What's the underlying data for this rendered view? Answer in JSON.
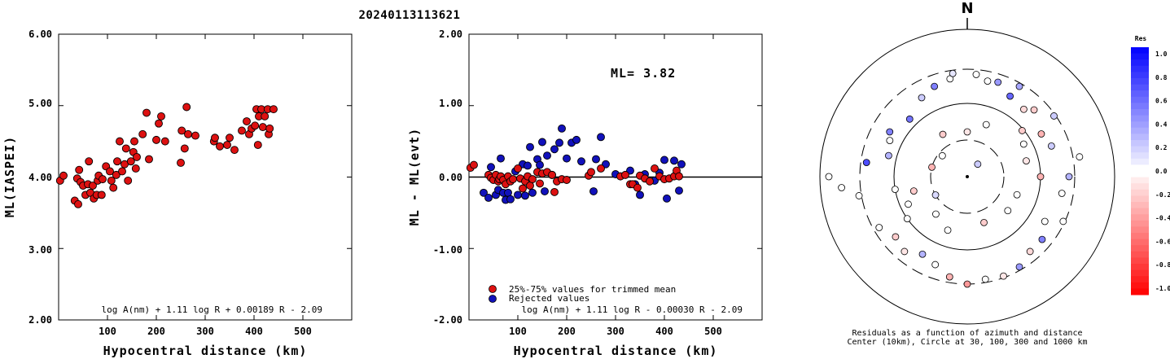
{
  "title": "20240113113621",
  "colors": {
    "red": "#dd1111",
    "blue": "#1111bb"
  },
  "chart_data": [
    {
      "type": "scatter",
      "ylabel": "ML(IASPEI)",
      "xlabel": "Hypocentral distance (km)",
      "xlim": [
        0,
        600
      ],
      "ylim": [
        2.0,
        6.0
      ],
      "xticks": [
        "100",
        "200",
        "300",
        "400",
        "500"
      ],
      "yticks": [
        "2.00",
        "3.00",
        "4.00",
        "5.00",
        "6.00"
      ],
      "formula": "log A(nm) + 1.11 log R + 0.00189 R - 2.09",
      "points": [
        [
          3,
          3.95
        ],
        [
          10,
          4.02
        ],
        [
          33,
          3.67
        ],
        [
          38,
          3.98
        ],
        [
          40,
          3.62
        ],
        [
          42,
          4.1
        ],
        [
          45,
          3.93
        ],
        [
          50,
          3.88
        ],
        [
          55,
          3.75
        ],
        [
          60,
          3.9
        ],
        [
          62,
          4.22
        ],
        [
          65,
          3.78
        ],
        [
          70,
          3.88
        ],
        [
          72,
          3.7
        ],
        [
          78,
          3.75
        ],
        [
          80,
          3.95
        ],
        [
          82,
          4.02
        ],
        [
          88,
          3.75
        ],
        [
          90,
          3.97
        ],
        [
          97,
          4.15
        ],
        [
          105,
          4.08
        ],
        [
          108,
          3.95
        ],
        [
          112,
          3.85
        ],
        [
          118,
          4.03
        ],
        [
          120,
          4.22
        ],
        [
          125,
          4.5
        ],
        [
          130,
          4.08
        ],
        [
          135,
          4.18
        ],
        [
          138,
          4.4
        ],
        [
          142,
          3.95
        ],
        [
          148,
          4.22
        ],
        [
          153,
          4.35
        ],
        [
          155,
          4.5
        ],
        [
          158,
          4.12
        ],
        [
          160,
          4.28
        ],
        [
          172,
          4.6
        ],
        [
          180,
          4.9
        ],
        [
          185,
          4.25
        ],
        [
          200,
          4.52
        ],
        [
          205,
          4.75
        ],
        [
          210,
          4.85
        ],
        [
          218,
          4.5
        ],
        [
          250,
          4.2
        ],
        [
          252,
          4.65
        ],
        [
          258,
          4.4
        ],
        [
          262,
          4.98
        ],
        [
          265,
          4.6
        ],
        [
          280,
          4.58
        ],
        [
          318,
          4.5
        ],
        [
          320,
          4.55
        ],
        [
          330,
          4.43
        ],
        [
          345,
          4.45
        ],
        [
          350,
          4.55
        ],
        [
          360,
          4.38
        ],
        [
          375,
          4.65
        ],
        [
          385,
          4.78
        ],
        [
          390,
          4.6
        ],
        [
          395,
          4.68
        ],
        [
          402,
          4.72
        ],
        [
          405,
          4.95
        ],
        [
          408,
          4.45
        ],
        [
          410,
          4.85
        ],
        [
          415,
          4.95
        ],
        [
          418,
          4.7
        ],
        [
          422,
          4.85
        ],
        [
          428,
          4.95
        ],
        [
          430,
          4.6
        ],
        [
          432,
          4.68
        ],
        [
          440,
          4.95
        ]
      ]
    },
    {
      "type": "scatter",
      "ylabel": "ML - ML(evt)",
      "xlabel": "Hypocentral distance (km)",
      "xlim": [
        0,
        600
      ],
      "ylim": [
        -2.0,
        2.0
      ],
      "xticks": [
        "100",
        "200",
        "300",
        "400",
        "500"
      ],
      "yticks": [
        "-2.00",
        "-1.00",
        "0.00",
        "1.00",
        "2.00"
      ],
      "annotation": "ML= 3.82",
      "formula": "log A(nm) + 1.11 log R - 0.00030 R - 2.09",
      "legend": [
        "25%-75% values for trimmed mean",
        "Rejected values"
      ],
      "red_points": [
        [
          3,
          0.13
        ],
        [
          10,
          0.17
        ],
        [
          40,
          0.03
        ],
        [
          45,
          -0.01
        ],
        [
          50,
          -0.04
        ],
        [
          55,
          0.03
        ],
        [
          60,
          -0.06
        ],
        [
          62,
          -0.03
        ],
        [
          65,
          0.01
        ],
        [
          70,
          -0.04
        ],
        [
          75,
          -0.1
        ],
        [
          80,
          0.01
        ],
        [
          85,
          -0.06
        ],
        [
          90,
          -0.03
        ],
        [
          100,
          0.12
        ],
        [
          105,
          -0.02
        ],
        [
          110,
          -0.16
        ],
        [
          115,
          -0.06
        ],
        [
          120,
          0.01
        ],
        [
          125,
          -0.12
        ],
        [
          130,
          -0.03
        ],
        [
          140,
          0.07
        ],
        [
          145,
          -0.09
        ],
        [
          150,
          0.05
        ],
        [
          160,
          0.07
        ],
        [
          170,
          0.03
        ],
        [
          175,
          -0.21
        ],
        [
          180,
          -0.06
        ],
        [
          190,
          -0.03
        ],
        [
          200,
          -0.04
        ],
        [
          245,
          0.02
        ],
        [
          250,
          0.07
        ],
        [
          270,
          0.12
        ],
        [
          310,
          0.01
        ],
        [
          320,
          0.03
        ],
        [
          330,
          -0.1
        ],
        [
          335,
          -0.1
        ],
        [
          345,
          -0.15
        ],
        [
          350,
          0.02
        ],
        [
          360,
          -0.02
        ],
        [
          370,
          -0.06
        ],
        [
          380,
          0.12
        ],
        [
          390,
          0.01
        ],
        [
          400,
          -0.03
        ],
        [
          410,
          -0.02
        ],
        [
          420,
          0.01
        ],
        [
          425,
          0.09
        ],
        [
          430,
          0.01
        ]
      ],
      "blue_points": [
        [
          30,
          -0.22
        ],
        [
          40,
          -0.29
        ],
        [
          45,
          0.14
        ],
        [
          55,
          -0.25
        ],
        [
          60,
          -0.18
        ],
        [
          65,
          0.26
        ],
        [
          70,
          -0.22
        ],
        [
          75,
          -0.32
        ],
        [
          80,
          -0.22
        ],
        [
          85,
          -0.31
        ],
        [
          95,
          0.08
        ],
        [
          100,
          -0.25
        ],
        [
          110,
          0.18
        ],
        [
          115,
          -0.26
        ],
        [
          120,
          0.16
        ],
        [
          125,
          0.42
        ],
        [
          130,
          -0.22
        ],
        [
          140,
          0.25
        ],
        [
          145,
          0.17
        ],
        [
          150,
          0.49
        ],
        [
          155,
          -0.2
        ],
        [
          160,
          0.3
        ],
        [
          170,
          0.03
        ],
        [
          175,
          0.39
        ],
        [
          185,
          0.48
        ],
        [
          190,
          0.68
        ],
        [
          200,
          0.26
        ],
        [
          210,
          0.48
        ],
        [
          220,
          0.52
        ],
        [
          230,
          0.22
        ],
        [
          255,
          -0.2
        ],
        [
          260,
          0.25
        ],
        [
          270,
          0.56
        ],
        [
          280,
          0.18
        ],
        [
          300,
          0.04
        ],
        [
          330,
          0.09
        ],
        [
          340,
          -0.1
        ],
        [
          350,
          -0.25
        ],
        [
          360,
          0.04
        ],
        [
          380,
          -0.05
        ],
        [
          390,
          0.06
        ],
        [
          400,
          0.24
        ],
        [
          405,
          -0.3
        ],
        [
          420,
          0.23
        ],
        [
          430,
          -0.19
        ],
        [
          435,
          0.18
        ]
      ]
    },
    {
      "type": "polar-scatter",
      "north_label": "N",
      "caption": "Residuals as a function of azimuth and distance",
      "caption2": "Center (10km), Circle at 30, 100, 300 and 1000 km",
      "colorbar_title": "Res",
      "colorbar_ticks": [
        "1.0",
        "0.8",
        "0.6",
        "0.4",
        "0.2",
        "0.0",
        "-0.2",
        "-0.4",
        "-0.6",
        "-0.8",
        "-1.0"
      ],
      "points_residual": [
        [
          18,
          122,
          0.4
        ],
        [
          30,
          128,
          0.35
        ],
        [
          5,
          126,
          0.0
        ],
        [
          340,
          118,
          0.5
        ],
        [
          350,
          122,
          0.0
        ],
        [
          12,
          120,
          0.0
        ],
        [
          -8,
          128,
          0.1
        ],
        [
          28,
          112,
          0.6
        ],
        [
          40,
          108,
          -0.15
        ],
        [
          45,
          116,
          -0.2
        ],
        [
          -30,
          112,
          0.2
        ],
        [
          -45,
          100,
          0.55
        ],
        [
          -60,
          110,
          0.5
        ],
        [
          -65,
          105,
          0.0
        ],
        [
          -82,
          125,
          0.7
        ],
        [
          -75,
          100,
          0.3
        ],
        [
          -90,
          170,
          0.0
        ],
        [
          -95,
          155,
          0.0
        ],
        [
          -100,
          135,
          0.0
        ],
        [
          -120,
          125,
          0.0
        ],
        [
          -130,
          115,
          -0.2
        ],
        [
          -140,
          120,
          -0.1
        ],
        [
          -150,
          110,
          0.3
        ],
        [
          -160,
          115,
          0.0
        ],
        [
          -170,
          125,
          -0.3
        ],
        [
          180,
          132,
          -0.4
        ],
        [
          170,
          128,
          0.0
        ],
        [
          160,
          130,
          -0.1
        ],
        [
          150,
          128,
          0.4
        ],
        [
          140,
          120,
          -0.15
        ],
        [
          130,
          120,
          0.5
        ],
        [
          120,
          110,
          0.0
        ],
        [
          115,
          130,
          0.0
        ],
        [
          100,
          118,
          0.0
        ],
        [
          90,
          125,
          0.3
        ],
        [
          80,
          140,
          0.0
        ],
        [
          70,
          110,
          0.2
        ],
        [
          60,
          105,
          -0.3
        ],
        [
          55,
          130,
          0.2
        ],
        [
          50,
          88,
          -0.2
        ],
        [
          -50,
          40,
          0.0
        ],
        [
          -75,
          45,
          -0.3
        ],
        [
          -30,
          60,
          -0.2
        ],
        [
          0,
          55,
          -0.1
        ],
        [
          20,
          68,
          0.0
        ],
        [
          -120,
          45,
          0.15
        ],
        [
          -140,
          60,
          0.0
        ],
        [
          -160,
          70,
          0.0
        ],
        [
          160,
          60,
          -0.2
        ],
        [
          130,
          65,
          0.0
        ],
        [
          110,
          65,
          0.0
        ],
        [
          90,
          90,
          -0.3
        ],
        [
          75,
          75,
          -0.1
        ],
        [
          60,
          80,
          0.0
        ],
        [
          40,
          20,
          0.2
        ],
        [
          -105,
          68,
          -0.2
        ],
        [
          -115,
          80,
          0.0
        ],
        [
          -125,
          90,
          0.0
        ],
        [
          -100,
          90,
          0.0
        ]
      ]
    }
  ]
}
